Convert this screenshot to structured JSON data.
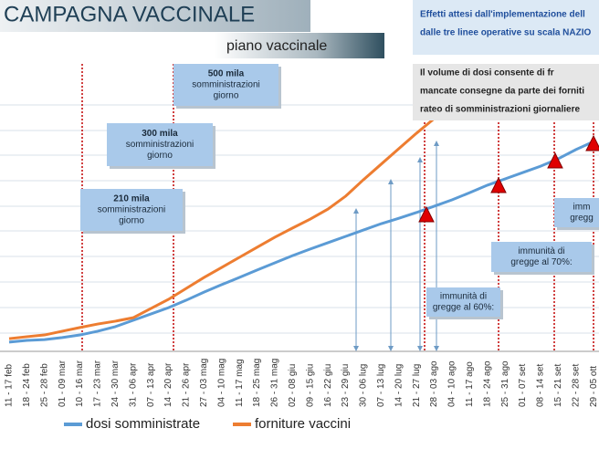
{
  "chart_data": {
    "type": "line",
    "title": "CAMPAGNA VACCINALE",
    "subtitle": "piano vaccinale",
    "info_top": [
      "Effetti attesi dall'implementazione dell",
      "dalle tre linee operative su scala NAZIO"
    ],
    "info_bottom": [
      "Il volume di  dosi consente di fr",
      "mancate consegne da parte dei forniti",
      "rateo di somministrazioni giornaliere"
    ],
    "categories": [
      "11 - 17 feb",
      "18 - 24 feb",
      "25 - 28 feb",
      "01 - 09 mar",
      "10 - 16 mar",
      "17 - 23 mar",
      "24 - 30 mar",
      "31 - 06 apr",
      "07 - 13 apr",
      "14 - 20 apr",
      "21 - 26 apr",
      "27 - 03 mag",
      "04 - 10 mag",
      "11 - 17 mag",
      "18 - 25 mag",
      "26 - 31 mag",
      "02 - 08 giu",
      "09 - 15 giu",
      "16 - 22 giu",
      "23 - 29 giu",
      "30 - 06 lug",
      "07 - 13 lug",
      "14 - 20 lug",
      "21 - 27 lug",
      "28 - 03 ago",
      "04 - 10 ago",
      "11 - 17 ago",
      "18 - 24 ago",
      "25 - 31 ago",
      "01 - 07 set",
      "08 - 14 set",
      "15 - 21 set",
      "22 - 28 set",
      "29 - 05 ott"
    ],
    "series": [
      {
        "name": "dosi somministrate",
        "color": "#5b9bd5",
        "values": [
          3.2,
          3.8,
          4.1,
          4.8,
          5.7,
          7.0,
          8.6,
          10.8,
          13.0,
          15.2,
          17.8,
          20.6,
          23.2,
          25.7,
          28.3,
          30.8,
          33.3,
          35.6,
          37.8,
          40.0,
          42.2,
          44.4,
          46.3,
          48.3,
          50.5,
          52.7,
          55.2,
          57.8,
          60.0,
          62.2,
          64.4,
          67.0,
          70.2,
          73.0
        ]
      },
      {
        "name": "forniture vaccini",
        "color": "#ed7d31",
        "values": [
          4.4,
          5.1,
          5.7,
          7.0,
          8.3,
          9.5,
          10.5,
          11.7,
          14.9,
          18.1,
          21.9,
          25.7,
          29.2,
          32.7,
          36.2,
          39.7,
          42.9,
          46.0,
          49.5,
          54.0,
          59.7,
          65.1,
          70.5,
          75.9,
          81.0,
          86.0,
          91.4,
          null,
          null,
          null,
          null,
          null,
          null,
          null
        ]
      }
    ],
    "ylim": [
      0,
      100
    ],
    "annotations": [
      {
        "lines": [
          "500 mila",
          "somministrazioni",
          "giorno"
        ]
      },
      {
        "lines": [
          "300 mila",
          "somministrazioni",
          "giorno"
        ]
      },
      {
        "lines": [
          "210 mila",
          "somministrazioni",
          "giorno"
        ]
      },
      {
        "lines": [
          "immunità di",
          "gregge al 60%:"
        ]
      },
      {
        "lines": [
          "immunità di",
          "gregge al 70%:"
        ]
      },
      {
        "lines": [
          "imm",
          "gregg"
        ]
      }
    ]
  }
}
